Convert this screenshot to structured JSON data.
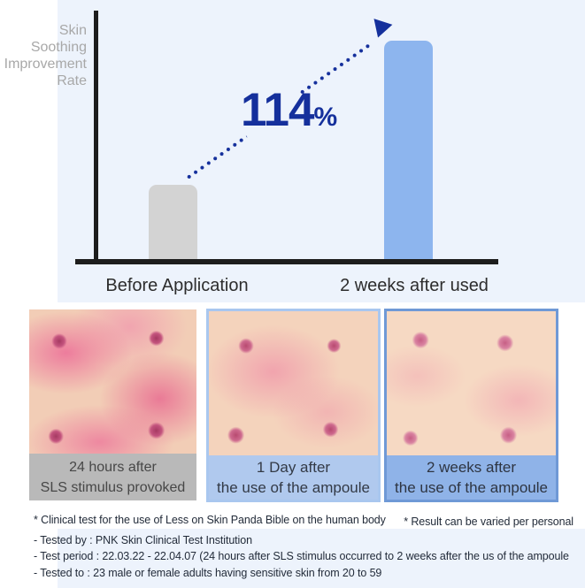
{
  "chart": {
    "ylabel_lines": [
      "Skin",
      "Soothing",
      "Improvement",
      "Rate"
    ],
    "improvement_value": "114",
    "percent_sign": "%"
  },
  "chart_data": {
    "type": "bar",
    "title": "",
    "ylabel": "Skin Soothing Improvement Rate",
    "xlabel": "",
    "categories": [
      "Before Application",
      "2 weeks after used"
    ],
    "series": [
      {
        "name": "Skin Soothing Improvement Rate",
        "values_relative_bar_height": [
          0.34,
          1.0
        ]
      }
    ],
    "annotation_label": "114%",
    "annotation_meaning": "114% improvement from before application to 2 weeks after use",
    "axis_ticks": "none shown",
    "grid": false,
    "legend": false,
    "bar_colors": [
      "#d3d3d3",
      "#8db5ee"
    ]
  },
  "colors": {
    "accent_navy": "#15309c",
    "chart_background": "#edf3fc",
    "bar_before": "#d3d3d3",
    "bar_after": "#8db5ee",
    "caption1_bg": "#b9b9b9",
    "caption2_bg": "#b0c9ee",
    "caption3_bg": "#8fb3e8",
    "panel2_border": "#a9c7ef",
    "panel3_border": "#6f99d6"
  },
  "panels": [
    {
      "caption_line1": "24 hours after",
      "caption_line2": "SLS stimulus provoked"
    },
    {
      "caption_line1": "1 Day after",
      "caption_line2": "the use of the ampoule"
    },
    {
      "caption_line1": "2 weeks after",
      "caption_line2": "the use of the ampoule"
    }
  ],
  "footnotes": {
    "clinical": "* Clinical test for the use of Less on Skin Panda Bible on the human body",
    "result_note": "* Result can be varied per personal",
    "lines": [
      "- Tested by : PNK Skin Clinical Test Institution",
      "- Test period : 22.03.22 - 22.04.07 (24 hours after SLS stimulus occurred to 2 weeks after the us of the ampoule",
      "- Tested to : 23 male or female adults having sensitive skin from 20 to 59"
    ]
  }
}
